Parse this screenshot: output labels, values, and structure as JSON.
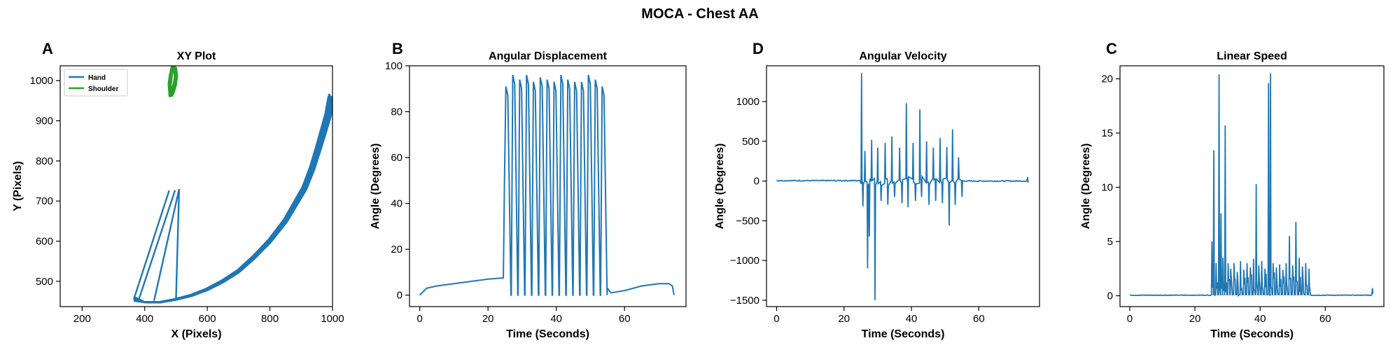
{
  "figure_title": "MOCA - Chest AA",
  "colors": {
    "hand": "#1f77b4",
    "shoulder": "#2ca02c",
    "line": "#1f77b4"
  },
  "chart_data": [
    {
      "panel": "A",
      "type": "line",
      "title": "XY Plot",
      "xlabel": "X (Pixels)",
      "ylabel": "Y (Pixels)",
      "xlim": [
        130,
        1000
      ],
      "ylim": [
        437,
        1037
      ],
      "xticks": [
        "200",
        "400",
        "600",
        "800",
        "1000"
      ],
      "yticks": [
        "500",
        "600",
        "700",
        "800",
        "900",
        "1000"
      ],
      "legend": {
        "placement": "top-left",
        "entries": [
          "Hand",
          "Shoulder"
        ]
      },
      "series": [
        {
          "name": "Hand",
          "color": "#1f77b4",
          "x": [
            365,
            400,
            450,
            500,
            550,
            600,
            650,
            700,
            750,
            800,
            850,
            880,
            910,
            935,
            955,
            970,
            985,
            995,
            1000
          ],
          "y": [
            450,
            448,
            448,
            455,
            465,
            480,
            500,
            525,
            560,
            600,
            650,
            690,
            730,
            780,
            830,
            870,
            910,
            950,
            960
          ]
        },
        {
          "name": "Shoulder",
          "color": "#2ca02c",
          "x": [
            483,
            490,
            496,
            500,
            497,
            490,
            484,
            480,
            483
          ],
          "y": [
            962,
            975,
            990,
            1010,
            1030,
            1035,
            1015,
            990,
            962
          ]
        }
      ]
    },
    {
      "panel": "B",
      "type": "line",
      "title": "Angular Displacement",
      "xlabel": "Time (Seconds)",
      "ylabel": "Angle (Degrees)",
      "xlim": [
        -3,
        78
      ],
      "ylim": [
        -5,
        100
      ],
      "xticks": [
        "0",
        "20",
        "40",
        "60"
      ],
      "yticks": [
        "0",
        "20",
        "40",
        "60",
        "80",
        "100"
      ],
      "baseline_x": [
        0,
        2,
        5,
        10,
        15,
        20,
        24.5
      ],
      "baseline_y": [
        0,
        3,
        4,
        5,
        6,
        7,
        7.5
      ],
      "peaks": [
        91,
        96,
        94,
        96,
        93,
        95,
        94,
        93,
        96,
        94,
        93,
        93,
        96,
        94,
        91
      ],
      "oscillation_range": [
        24.8,
        55
      ],
      "tail_x": [
        55,
        56,
        60,
        65,
        70,
        73,
        74,
        74.5
      ],
      "tail_y": [
        3,
        1,
        2,
        4,
        5,
        5,
        4,
        0
      ]
    },
    {
      "panel": "D",
      "type": "line",
      "title": "Angular Velocity",
      "xlabel": "Time (Seconds)",
      "ylabel": "Angle (Degrees)",
      "xlim": [
        -3,
        78
      ],
      "ylim": [
        -1580,
        1450
      ],
      "xticks": [
        "0",
        "20",
        "40",
        "60"
      ],
      "yticks": [
        "1000",
        "500",
        "0",
        "−500",
        "−1000",
        "−1500"
      ],
      "spikes": [
        {
          "t": 25.2,
          "v": 1360
        },
        {
          "t": 25.6,
          "v": -320
        },
        {
          "t": 26.2,
          "v": 380
        },
        {
          "t": 27.0,
          "v": -1100
        },
        {
          "t": 27.5,
          "v": -700
        },
        {
          "t": 28.2,
          "v": 520
        },
        {
          "t": 29.2,
          "v": -1500
        },
        {
          "t": 30.0,
          "v": 420
        },
        {
          "t": 31.0,
          "v": -250
        },
        {
          "t": 32.2,
          "v": 480
        },
        {
          "t": 33.0,
          "v": -300
        },
        {
          "t": 34.2,
          "v": 560
        },
        {
          "t": 35.0,
          "v": -200
        },
        {
          "t": 36.5,
          "v": 420
        },
        {
          "t": 37.2,
          "v": -280
        },
        {
          "t": 38.5,
          "v": 980
        },
        {
          "t": 39.0,
          "v": -330
        },
        {
          "t": 40.5,
          "v": 480
        },
        {
          "t": 41.2,
          "v": -250
        },
        {
          "t": 42.5,
          "v": 900
        },
        {
          "t": 43.0,
          "v": -200
        },
        {
          "t": 44.5,
          "v": 500
        },
        {
          "t": 45.2,
          "v": -300
        },
        {
          "t": 46.5,
          "v": 420
        },
        {
          "t": 47.2,
          "v": -250
        },
        {
          "t": 48.5,
          "v": 540
        },
        {
          "t": 49.2,
          "v": -280
        },
        {
          "t": 50.5,
          "v": 430
        },
        {
          "t": 51.2,
          "v": -560
        },
        {
          "t": 52.2,
          "v": 650
        },
        {
          "t": 53.0,
          "v": -300
        },
        {
          "t": 54.0,
          "v": 300
        },
        {
          "t": 55.0,
          "v": -200
        }
      ],
      "end_blip": {
        "t": 74.5,
        "v": 50
      }
    },
    {
      "panel": "C",
      "type": "line",
      "title": "Linear Speed",
      "xlabel": "Time (Seconds)",
      "ylabel": "Angle (Degrees)",
      "xlim": [
        -3,
        78
      ],
      "ylim": [
        -1,
        21.2
      ],
      "xticks": [
        "0",
        "20",
        "40",
        "60"
      ],
      "yticks": [
        "0",
        "5",
        "10",
        "15",
        "20"
      ],
      "spikes": [
        {
          "t": 25.2,
          "v": 5
        },
        {
          "t": 25.8,
          "v": 13.4
        },
        {
          "t": 26.5,
          "v": 3
        },
        {
          "t": 27.4,
          "v": 20.4
        },
        {
          "t": 28.0,
          "v": 7.6
        },
        {
          "t": 28.6,
          "v": 3.5
        },
        {
          "t": 29.3,
          "v": 15.7
        },
        {
          "t": 30.2,
          "v": 3
        },
        {
          "t": 31.0,
          "v": 2.5
        },
        {
          "t": 32.0,
          "v": 3
        },
        {
          "t": 33.0,
          "v": 2.2
        },
        {
          "t": 34.0,
          "v": 3.2
        },
        {
          "t": 35.0,
          "v": 2.4
        },
        {
          "t": 36.0,
          "v": 3
        },
        {
          "t": 37.0,
          "v": 2.6
        },
        {
          "t": 38.0,
          "v": 3.4
        },
        {
          "t": 38.8,
          "v": 10.3
        },
        {
          "t": 39.6,
          "v": 2.8
        },
        {
          "t": 40.5,
          "v": 3.2
        },
        {
          "t": 41.5,
          "v": 2.5
        },
        {
          "t": 42.6,
          "v": 19.6
        },
        {
          "t": 43.2,
          "v": 20.5
        },
        {
          "t": 44.0,
          "v": 3
        },
        {
          "t": 45.0,
          "v": 2.6
        },
        {
          "t": 46.0,
          "v": 2.9
        },
        {
          "t": 47.0,
          "v": 2.4
        },
        {
          "t": 48.0,
          "v": 3
        },
        {
          "t": 49.0,
          "v": 5.5
        },
        {
          "t": 50.0,
          "v": 2.8
        },
        {
          "t": 51.0,
          "v": 6.8
        },
        {
          "t": 52.0,
          "v": 3.5
        },
        {
          "t": 53.0,
          "v": 2.7
        },
        {
          "t": 54.0,
          "v": 3
        },
        {
          "t": 55.0,
          "v": 2.5
        }
      ],
      "end_blip": {
        "t": 74.5,
        "v": 0.7
      }
    }
  ]
}
